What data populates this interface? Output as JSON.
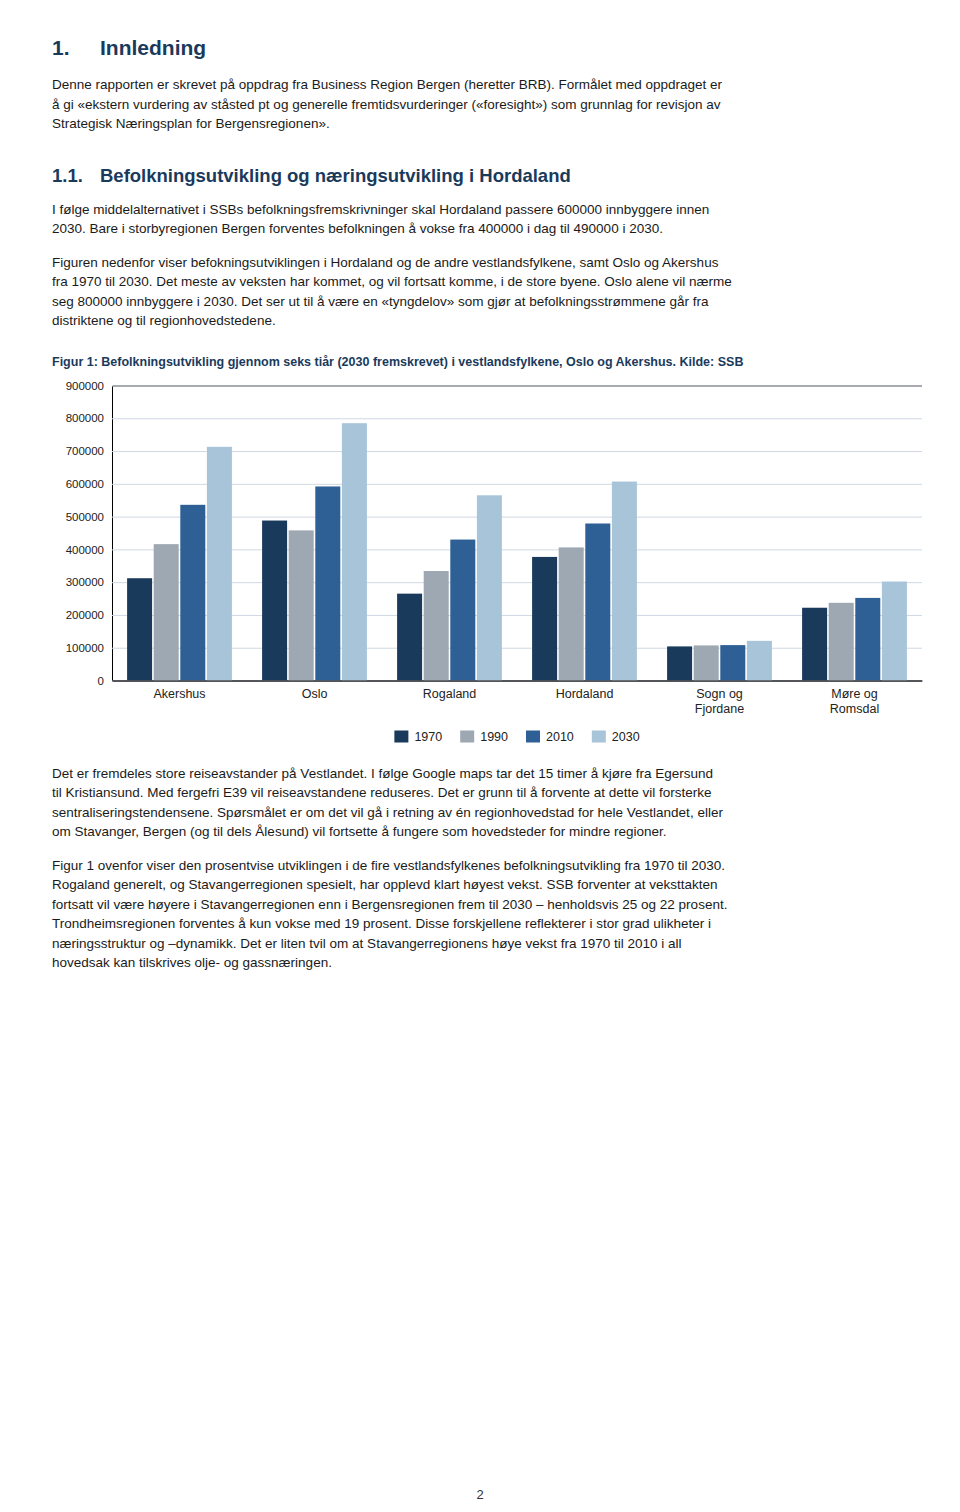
{
  "title_number": "1.",
  "title": "Innledning",
  "intro": [
    "Denne rapporten er skrevet på oppdrag fra Business Region Bergen (heretter BRB). Formålet med oppdraget er",
    "å gi «ekstern vurdering av ståsted pt og generelle fremtidsvurderinger («foresight») som grunnlag for revisjon av",
    "Strategisk Næringsplan for Bergensregionen»."
  ],
  "section_number": "1.1.",
  "section_title": "Befolkningsutvikling og næringsutvikling i Hordaland",
  "body1": [
    "I følge middelalternativet i SSBs befolkningsfremskrivninger skal Hordaland passere 600000 innbyggere innen",
    "2030. Bare i storbyregionen Bergen forventes befolkningen å vokse fra 400000 i dag til 490000 i 2030."
  ],
  "body2": [
    "Figuren nedenfor viser befokningsutviklingen i Hordaland og de andre vestlandsfylkene, samt Oslo og Akershus",
    "fra 1970 til 2030. Det meste av veksten har kommet, og vil fortsatt komme, i de store byene. Oslo alene vil nærme",
    "seg 800000 innbyggere i 2030. Det ser ut til å være en «tyngdelov» som gjør at befolkningsstrømmene går fra",
    "distriktene og til regionhovedstedene."
  ],
  "after1": [
    "Det er fremdeles store reiseavstander på Vestlandet. I følge Google maps tar det 15 timer å kjøre fra Egersund",
    "til Kristiansund. Med fergefri E39 vil reiseavstandene reduseres. Det er grunn til å forvente at dette vil forsterke",
    "sentraliseringstendensene. Spørsmålet er om det vil gå i retning av én regionhovedstad for hele Vestlandet, eller",
    "om Stavanger, Bergen (og til dels Ålesund) vil fortsette å fungere som hovedsteder for mindre regioner."
  ],
  "after2": [
    "Figur 1 ovenfor viser den prosentvise utviklingen i de fire vestlandsfylkenes befolkningsutvikling fra 1970 til 2030.",
    "Rogaland generelt, og Stavangerregionen spesielt, har opplevd klart høyest vekst. SSB forventer at veksttakten",
    "fortsatt vil være høyere i Stavangerregionen enn i Bergensregionen frem til 2030 – henholdsvis 25 og 22 prosent.",
    "Trondheimsregionen forventes å kun vokse med 19 prosent. Disse forskjellene reflekterer i stor grad ulikheter i",
    "næringsstruktur og –dynamikk. Det er liten tvil om at Stavangerregionens høye vekst fra 1970 til 2010 i all",
    "hovedsak kan tilskrives olje- og gassnæringen."
  ],
  "page_number": "2",
  "chart_data": {
    "type": "bar",
    "title": "Figur 1: Befolkningsutvikling gjennom seks tiår (2030 fremskrevet) i vestlandsfylkene, Oslo og Akershus. Kilde: SSB",
    "categories": [
      "Akershus",
      "Oslo",
      "Rogaland",
      "Hordaland",
      "Sogn og\nFjordane",
      "Møre og\nRomsdal"
    ],
    "series": [
      {
        "name": "1970",
        "color": "#1a3a5c",
        "values": [
          312000,
          488000,
          265000,
          377000,
          104000,
          222000
        ]
      },
      {
        "name": "1990",
        "color": "#9ea8b3",
        "values": [
          416000,
          458000,
          334000,
          406000,
          107000,
          237000
        ]
      },
      {
        "name": "2010",
        "color": "#2e6096",
        "values": [
          536000,
          592000,
          430000,
          479000,
          108000,
          252000
        ]
      },
      {
        "name": "2030",
        "color": "#a8c4d8",
        "values": [
          713000,
          785000,
          565000,
          607000,
          121000,
          302000
        ]
      }
    ],
    "ylim": [
      0,
      900000
    ],
    "yticks": [
      0,
      100000,
      200000,
      300000,
      400000,
      500000,
      600000,
      700000,
      800000,
      900000
    ],
    "grid": true,
    "legend": "bottom"
  }
}
